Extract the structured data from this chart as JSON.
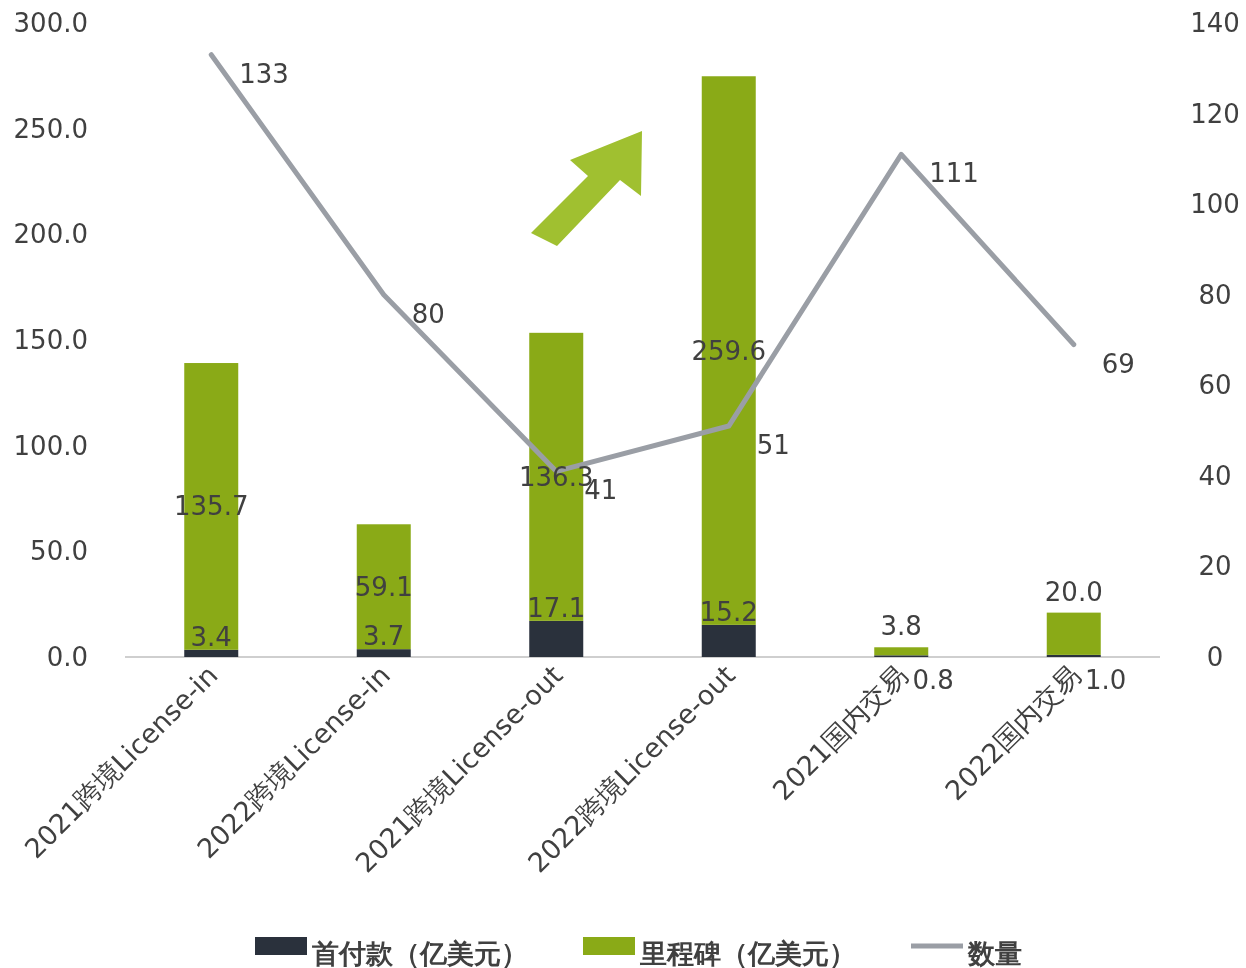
{
  "chart_data": {
    "type": "bar",
    "stacked": true,
    "data_labels": true,
    "legend": "bottom",
    "grid": false,
    "categories": [
      "2021跨境License-in",
      "2022跨境License-in",
      "2021跨境License-out",
      "2022跨境License-out",
      "2021国内交易",
      "2022国内交易"
    ],
    "series": [
      {
        "name": "首付款（亿美元）",
        "color": "#2a313c",
        "values": [
          3.4,
          3.7,
          17.1,
          15.2,
          0.8,
          1.0
        ],
        "value_labels": [
          "3.4",
          "3.7",
          "17.1",
          "15.2",
          "0.8",
          "1.0"
        ]
      },
      {
        "name": "里程碑（亿美元）",
        "color": "#8aaa17",
        "values": [
          135.7,
          59.1,
          136.3,
          259.6,
          3.8,
          20.0
        ],
        "value_labels": [
          "135.7",
          "59.1",
          "136.3",
          "259.6",
          "3.8",
          "20.0"
        ]
      },
      {
        "name": "数量",
        "type": "line",
        "axis": "y2",
        "color": "#9a9ea5",
        "marker": "none",
        "line_style": "solid",
        "values": [
          133,
          80,
          41,
          51,
          111,
          69
        ]
      }
    ],
    "ylim": [
      0,
      300
    ],
    "yticks": [
      {
        "value": 0,
        "label": "0.0"
      },
      {
        "value": 50,
        "label": "50.0"
      },
      {
        "value": 100,
        "label": "100.0"
      },
      {
        "value": 150,
        "label": "150.0"
      },
      {
        "value": 200,
        "label": "200.0"
      },
      {
        "value": 250,
        "label": "250.0"
      },
      {
        "value": 300,
        "label": "300.0"
      }
    ],
    "y2lim": [
      0,
      140
    ],
    "y2ticks": [
      0,
      20,
      40,
      60,
      80,
      100,
      120,
      140
    ]
  }
}
